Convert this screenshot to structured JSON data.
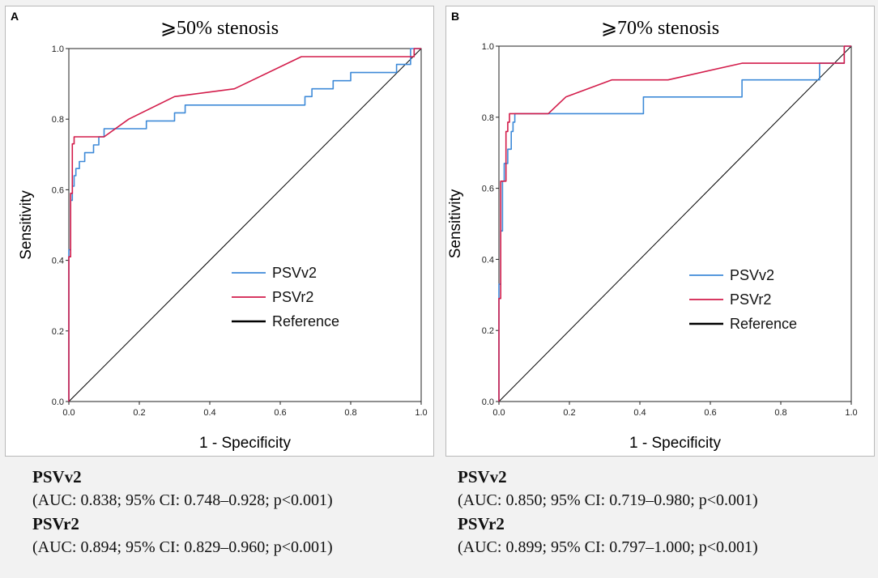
{
  "colors": {
    "psvv2": "#3e8ad8",
    "psvr2": "#d31d4b",
    "reference": "#000000"
  },
  "panels": [
    {
      "letter": "A",
      "title": "⩾50% stenosis",
      "stats": [
        {
          "name": "PSVv2",
          "text": "(AUC: 0.838; 95% CI: 0.748–0.928; p<0.001)"
        },
        {
          "name": "PSVr2",
          "text": "(AUC: 0.894; 95% CI: 0.829–0.960; p<0.001)"
        }
      ]
    },
    {
      "letter": "B",
      "title": "⩾70% stenosis",
      "stats": [
        {
          "name": "PSVv2",
          "text": "(AUC: 0.850; 95% CI: 0.719–0.980; p<0.001)"
        },
        {
          "name": "PSVr2",
          "text": "(AUC: 0.899; 95% CI: 0.797–1.000; p<0.001)"
        }
      ]
    }
  ],
  "chart_data": [
    {
      "type": "line",
      "title": "⩾50% stenosis",
      "xlabel": "1 - Specificity",
      "ylabel": "Sensitivity",
      "xlim": [
        0,
        1
      ],
      "ylim": [
        0,
        1
      ],
      "xticks": [
        "0.0",
        "0.2",
        "0.4",
        "0.6",
        "0.8",
        "1.0"
      ],
      "yticks": [
        "0.0",
        "0.2",
        "0.4",
        "0.6",
        "0.8",
        "1.0"
      ],
      "legend": [
        "PSVv2",
        "PSVr2",
        "Reference"
      ],
      "series": [
        {
          "name": "PSVv2",
          "x": [
            0,
            0,
            0.005,
            0.005,
            0.01,
            0.01,
            0.015,
            0.015,
            0.02,
            0.02,
            0.03,
            0.03,
            0.045,
            0.045,
            0.07,
            0.07,
            0.085,
            0.085,
            0.1,
            0.1,
            0.22,
            0.22,
            0.3,
            0.3,
            0.33,
            0.33,
            0.4,
            0.4,
            0.67,
            0.67,
            0.69,
            0.69,
            0.75,
            0.75,
            0.8,
            0.8,
            0.93,
            0.93,
            0.97,
            0.97,
            1
          ],
          "y": [
            0,
            0.43,
            0.43,
            0.57,
            0.57,
            0.61,
            0.61,
            0.64,
            0.64,
            0.66,
            0.66,
            0.68,
            0.68,
            0.705,
            0.705,
            0.727,
            0.727,
            0.75,
            0.75,
            0.773,
            0.773,
            0.795,
            0.795,
            0.818,
            0.818,
            0.84,
            0.84,
            0.84,
            0.84,
            0.864,
            0.864,
            0.886,
            0.886,
            0.909,
            0.909,
            0.932,
            0.932,
            0.955,
            0.955,
            1,
            1
          ]
        },
        {
          "name": "PSVr2",
          "x": [
            0,
            0,
            0.005,
            0.005,
            0.01,
            0.01,
            0.015,
            0.015,
            0.1,
            0.17,
            0.3,
            0.47,
            0.66,
            0.98,
            0.98,
            1
          ],
          "y": [
            0,
            0.41,
            0.41,
            0.59,
            0.59,
            0.73,
            0.73,
            0.75,
            0.75,
            0.8,
            0.864,
            0.886,
            0.977,
            0.977,
            1,
            1
          ]
        },
        {
          "name": "Reference",
          "x": [
            0,
            1
          ],
          "y": [
            0,
            1
          ]
        }
      ]
    },
    {
      "type": "line",
      "title": "⩾70% stenosis",
      "xlabel": "1 - Specificity",
      "ylabel": "Sensitivity",
      "xlim": [
        0,
        1
      ],
      "ylim": [
        0,
        1
      ],
      "xticks": [
        "0.0",
        "0.2",
        "0.4",
        "0.6",
        "0.8",
        "1.0"
      ],
      "yticks": [
        "0.0",
        "0.2",
        "0.4",
        "0.6",
        "0.8",
        "1.0"
      ],
      "legend": [
        "PSVv2",
        "PSVr2",
        "Reference"
      ],
      "series": [
        {
          "name": "PSVv2",
          "x": [
            0,
            0,
            0.005,
            0.005,
            0.01,
            0.01,
            0.015,
            0.015,
            0.025,
            0.025,
            0.035,
            0.035,
            0.04,
            0.04,
            0.045,
            0.045,
            0.41,
            0.41,
            0.69,
            0.69,
            0.91,
            0.91,
            0.98,
            0.98,
            1
          ],
          "y": [
            0,
            0.33,
            0.33,
            0.48,
            0.48,
            0.62,
            0.62,
            0.67,
            0.67,
            0.71,
            0.71,
            0.76,
            0.76,
            0.786,
            0.786,
            0.81,
            0.81,
            0.857,
            0.857,
            0.905,
            0.905,
            0.952,
            0.952,
            1,
            1
          ]
        },
        {
          "name": "PSVr2",
          "x": [
            0,
            0,
            0.005,
            0.005,
            0.02,
            0.02,
            0.025,
            0.025,
            0.03,
            0.03,
            0.14,
            0.19,
            0.32,
            0.48,
            0.69,
            0.98,
            0.98,
            1
          ],
          "y": [
            0,
            0.29,
            0.29,
            0.62,
            0.62,
            0.76,
            0.76,
            0.786,
            0.786,
            0.81,
            0.81,
            0.857,
            0.905,
            0.905,
            0.952,
            0.952,
            1,
            1
          ]
        },
        {
          "name": "Reference",
          "x": [
            0,
            1
          ],
          "y": [
            0,
            1
          ]
        }
      ]
    }
  ]
}
